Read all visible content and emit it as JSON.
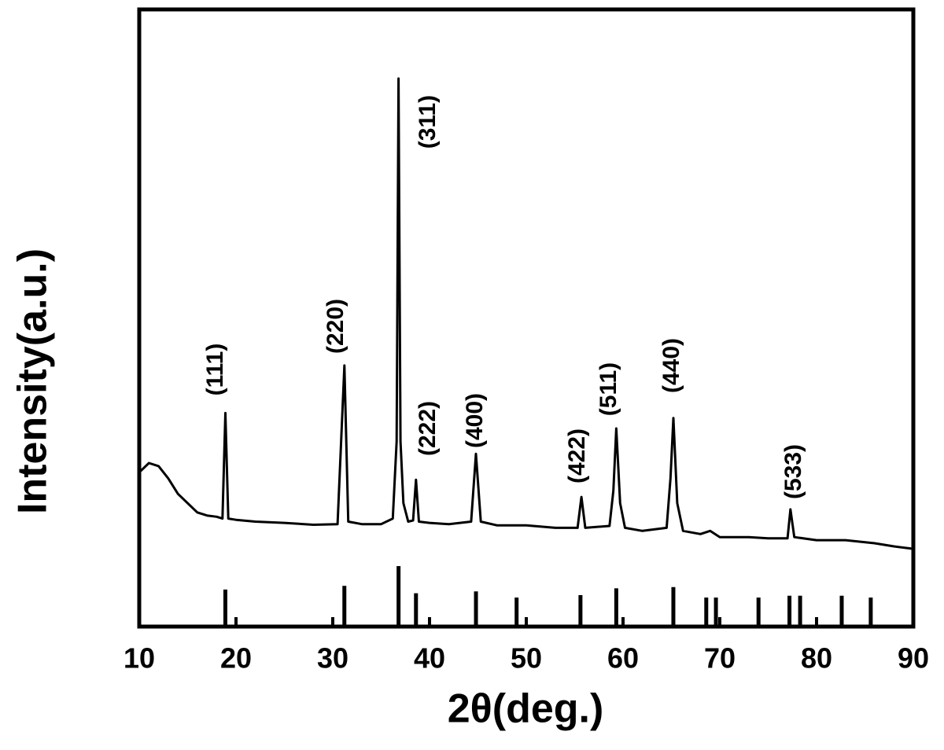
{
  "chart_data": {
    "type": "line",
    "xlabel": "2θ(deg.)",
    "ylabel": "Intensity(a.u.)",
    "xlim": [
      10,
      90
    ],
    "xticks": [
      10,
      20,
      30,
      40,
      50,
      60,
      70,
      80,
      90
    ],
    "ylim": [
      0,
      100
    ],
    "color": "#000000",
    "x": [
      10,
      11,
      12,
      13,
      14,
      15,
      16,
      17,
      18,
      18.6,
      18.9,
      19.2,
      20,
      22,
      25,
      28,
      30.5,
      31.2,
      31.6,
      33,
      35,
      36.2,
      36.6,
      36.8,
      37.0,
      37.3,
      37.8,
      38.3,
      38.6,
      38.9,
      40,
      42,
      44.3,
      44.8,
      45.3,
      47,
      50,
      53,
      55.3,
      55.7,
      56.1,
      58.6,
      59.0,
      59.3,
      59.7,
      60.2,
      62,
      64.5,
      64.9,
      65.2,
      65.6,
      66.2,
      68,
      69,
      70,
      73,
      75,
      77,
      77.3,
      77.7,
      80,
      83,
      86,
      88,
      90
    ],
    "values": [
      25,
      26.5,
      26,
      24,
      21.5,
      20,
      18.5,
      18,
      17.8,
      17.5,
      34.6,
      17.5,
      17.3,
      17,
      16.8,
      16.5,
      16.6,
      42.3,
      17,
      16.6,
      16.6,
      17.5,
      30,
      88.8,
      30,
      20,
      17,
      17.2,
      23.8,
      17,
      16.8,
      16.6,
      17,
      28,
      17,
      16.4,
      16.4,
      16,
      16,
      21,
      16,
      16.3,
      22,
      32.1,
      20,
      16,
      15.5,
      16,
      24,
      33.8,
      20,
      15.5,
      15,
      15.5,
      14.5,
      14.5,
      14.3,
      14.3,
      19,
      14.5,
      14,
      14,
      13.5,
      13,
      12.6
    ],
    "reference": {
      "x": [
        18.9,
        31.2,
        36.8,
        38.6,
        44.8,
        49.0,
        55.6,
        59.3,
        65.2,
        68.6,
        69.6,
        74.0,
        77.2,
        78.3,
        82.6,
        85.6
      ],
      "values": [
        6,
        6.6,
        9.8,
        5.4,
        5.7,
        4.7,
        5.1,
        6.2,
        6.4,
        4.7,
        4.7,
        4.7,
        5,
        5,
        5,
        4.7
      ]
    },
    "annotations": [
      "(111)",
      "(220)",
      "(311)",
      "(222)",
      "(400)",
      "(422)",
      "(511)",
      "(440)",
      "(533)"
    ]
  }
}
